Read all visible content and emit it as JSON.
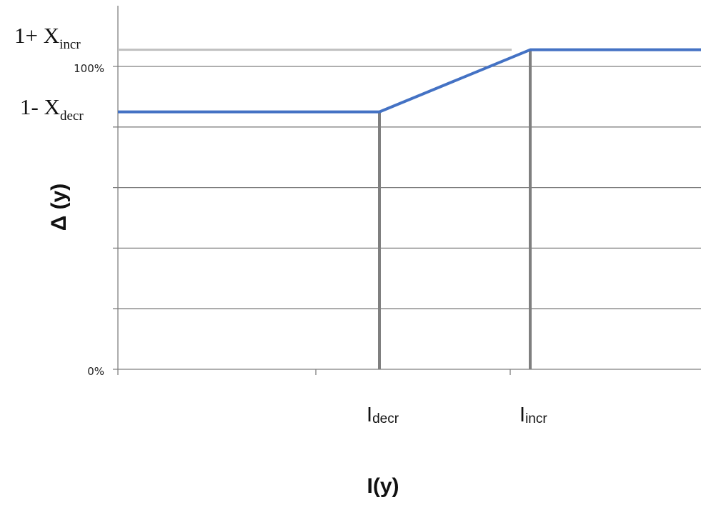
{
  "chart_data": {
    "type": "line",
    "xlabel": "I(y)",
    "ylabel": "Δ (y)",
    "y_ticks": [
      "0%",
      "100%"
    ],
    "ylim": [
      0,
      1.15
    ],
    "x_markers": [
      {
        "main": "I",
        "sub": "decr"
      },
      {
        "main": "I",
        "sub": "incr"
      }
    ],
    "y_markers": [
      {
        "main": "1+ X",
        "sub": "incr",
        "value": 1.055
      },
      {
        "main": "1- X",
        "sub": "decr",
        "value": 0.85
      }
    ],
    "series": [
      {
        "color": "#4472c4",
        "points": [
          {
            "x": 0,
            "y": 0.85
          },
          {
            "x": "I_decr",
            "y": 0.85
          },
          {
            "x": "I_incr",
            "y": 1.055
          },
          {
            "x": "max",
            "y": 1.055
          }
        ]
      }
    ],
    "grid": true,
    "colors": {
      "series": "#4472c4",
      "gridline": "#7f7f7f",
      "reference_line": "#bfbfbf",
      "marker_line": "#7f7f7f"
    }
  }
}
